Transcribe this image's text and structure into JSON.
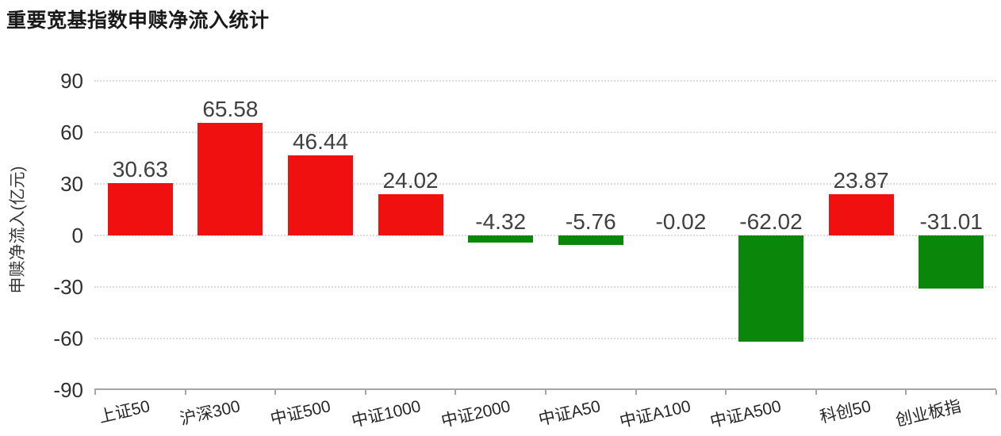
{
  "chart_data": {
    "type": "bar",
    "title": "重要宽基指数申赎净流入统计",
    "ylabel": "申赎净流入(亿元)",
    "xlabel": "",
    "categories": [
      "上证50",
      "沪深300",
      "中证500",
      "中证1000",
      "中证2000",
      "中证A50",
      "中证A100",
      "中证A500",
      "科创50",
      "创业板指"
    ],
    "values": [
      30.63,
      65.58,
      46.44,
      24.02,
      -4.32,
      -5.76,
      -0.02,
      -62.02,
      23.87,
      -31.01
    ],
    "yticks": [
      90,
      60,
      30,
      0,
      -30,
      -60,
      -90
    ],
    "ylim": [
      -90,
      90
    ],
    "grid": "horizontal-dotted",
    "legend": "none",
    "data_labels": true,
    "colors": {
      "positive_bar": "#f01010",
      "negative_bar": "#0a870a",
      "gridline": "#dadada",
      "axis_line": "#a6a6a6",
      "title_text": "#1a1a1a",
      "label_text": "#404040"
    }
  }
}
